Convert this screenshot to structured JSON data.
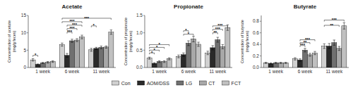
{
  "chart_data": [
    {
      "type": "bar",
      "title": "Acetate",
      "y_label": "Concentration of acetate\n(mg/g feces)",
      "categories": [
        "1 week",
        "6 week",
        "11 week"
      ],
      "series": [
        {
          "name": "Con",
          "color": "#d0d0d0",
          "values": [
            2.2,
            6.6,
            5.1
          ],
          "errors": [
            0.35,
            0.45,
            0.42
          ]
        },
        {
          "name": "AOM/DSS",
          "color": "#2a2a2a",
          "values": [
            0.9,
            3.5,
            5.5
          ],
          "errors": [
            0.12,
            0.55,
            0.32
          ]
        },
        {
          "name": "LG",
          "color": "#707070",
          "values": [
            1.3,
            7.7,
            5.8
          ],
          "errors": [
            0.18,
            0.45,
            0.38
          ]
        },
        {
          "name": "CT",
          "color": "#a8a8a8",
          "values": [
            1.5,
            7.9,
            5.9
          ],
          "errors": [
            0.22,
            0.42,
            0.32
          ]
        },
        {
          "name": "FCT",
          "color": "#c0c0c0",
          "values": [
            1.7,
            8.8,
            10.2
          ],
          "errors": [
            0.22,
            0.52,
            0.62
          ]
        }
      ],
      "ylim": [
        0,
        15
      ],
      "yticks": [
        0,
        5,
        10,
        15
      ],
      "legend": "bottom",
      "brackets": [
        {
          "from": [
            0,
            0
          ],
          "to": [
            0,
            1
          ],
          "label": "*",
          "y": 3.5
        },
        {
          "from": [
            1,
            1
          ],
          "to": [
            1,
            2
          ],
          "label": "***",
          "y": 10.2
        },
        {
          "from": [
            1,
            1
          ],
          "to": [
            1,
            3
          ],
          "label": "***",
          "y": 11.2
        },
        {
          "from": [
            1,
            1
          ],
          "to": [
            1,
            4
          ],
          "label": "***",
          "y": 12.2
        },
        {
          "from": [
            1,
            0
          ],
          "to": [
            1,
            4
          ],
          "label": "***",
          "y": 13.2
        },
        {
          "from": [
            1,
            0
          ],
          "to": [
            2,
            4
          ],
          "label": "***",
          "y": 14.2
        },
        {
          "from": [
            2,
            0
          ],
          "to": [
            2,
            1
          ],
          "label": "*",
          "y": 12.0
        }
      ]
    },
    {
      "type": "bar",
      "title": "Propionate",
      "y_label": "Concentration of propionate\n(mg/g feces)",
      "categories": [
        "1 week",
        "6 week",
        "11 week"
      ],
      "series": [
        {
          "color": "#d0d0d0",
          "values": [
            0.27,
            0.32,
            0.42
          ],
          "errors": [
            0.03,
            0.04,
            0.05
          ]
        },
        {
          "color": "#2a2a2a",
          "values": [
            0.12,
            0.37,
            0.57
          ],
          "errors": [
            0.02,
            0.05,
            0.06
          ]
        },
        {
          "color": "#707070",
          "values": [
            0.17,
            0.7,
            0.8
          ],
          "errors": [
            0.025,
            0.07,
            0.07
          ]
        },
        {
          "color": "#a8a8a8",
          "values": [
            0.17,
            0.82,
            0.6
          ],
          "errors": [
            0.025,
            0.08,
            0.06
          ]
        },
        {
          "color": "#c0c0c0",
          "values": [
            0.25,
            0.67,
            1.15
          ],
          "errors": [
            0.03,
            0.06,
            0.08
          ]
        }
      ],
      "ylim": [
        0,
        1.5
      ],
      "yticks": [
        {
          "value": 0,
          "label": "0.0"
        },
        0.5,
        {
          "value": 1,
          "label": "1.0"
        },
        1.5
      ],
      "brackets": [
        {
          "from": [
            0,
            0
          ],
          "to": [
            0,
            1
          ],
          "label": "*",
          "y": 0.42
        },
        {
          "from": [
            0,
            0
          ],
          "to": [
            0,
            2
          ],
          "label": "*",
          "y": 0.5
        },
        {
          "from": [
            0,
            0
          ],
          "to": [
            0,
            3
          ],
          "label": "*",
          "y": 0.58
        },
        {
          "from": [
            0,
            0
          ],
          "to": [
            0,
            4
          ],
          "label": "*",
          "y": 0.66
        },
        {
          "from": [
            1,
            1
          ],
          "to": [
            1,
            3
          ],
          "label": "*",
          "y": 0.96
        },
        {
          "from": [
            1,
            1
          ],
          "to": [
            1,
            2
          ],
          "label": "*",
          "y": 1.06
        },
        {
          "from": [
            2,
            1
          ],
          "to": [
            2,
            2
          ],
          "label": "**",
          "y": 1.0
        },
        {
          "from": [
            2,
            1
          ],
          "to": [
            2,
            3
          ],
          "label": "***",
          "y": 1.1
        },
        {
          "from": [
            2,
            1
          ],
          "to": [
            2,
            4
          ],
          "label": "***",
          "y": 1.2
        }
      ]
    },
    {
      "type": "bar",
      "title": "Butyrate",
      "y_label": "Concentration of butyrate\n(mg/g feces)",
      "categories": [
        "1 week",
        "6 week",
        "11 week"
      ],
      "series": [
        {
          "color": "#d0d0d0",
          "values": [
            0.08,
            0.15,
            0.37
          ],
          "errors": [
            0.01,
            0.02,
            0.04
          ]
        },
        {
          "color": "#2a2a2a",
          "values": [
            0.07,
            0.13,
            0.37
          ],
          "errors": [
            0.01,
            0.02,
            0.045
          ]
        },
        {
          "color": "#707070",
          "values": [
            0.08,
            0.3,
            0.43
          ],
          "errors": [
            0.01,
            0.03,
            0.045
          ]
        },
        {
          "color": "#a8a8a8",
          "values": [
            0.08,
            0.22,
            0.33
          ],
          "errors": [
            0.01,
            0.025,
            0.035
          ]
        },
        {
          "color": "#c0c0c0",
          "values": [
            0.08,
            0.25,
            0.72
          ],
          "errors": [
            0.01,
            0.028,
            0.055
          ]
        }
      ],
      "ylim": [
        0,
        0.9
      ],
      "yticks": [
        {
          "value": 0,
          "label": "0.0"
        },
        0.2,
        0.4,
        0.6,
        0.8
      ],
      "brackets": [
        {
          "from": [
            1,
            1
          ],
          "to": [
            1,
            2
          ],
          "label": "***",
          "y": 0.38
        },
        {
          "from": [
            1,
            1
          ],
          "to": [
            1,
            3
          ],
          "label": "**",
          "y": 0.43
        },
        {
          "from": [
            1,
            1
          ],
          "to": [
            1,
            4
          ],
          "label": "***",
          "y": 0.48
        },
        {
          "from": [
            2,
            0
          ],
          "to": [
            2,
            3
          ],
          "label": "**",
          "y": 0.73
        },
        {
          "from": [
            2,
            0
          ],
          "to": [
            2,
            4
          ],
          "label": "***",
          "y": 0.82
        }
      ]
    }
  ]
}
